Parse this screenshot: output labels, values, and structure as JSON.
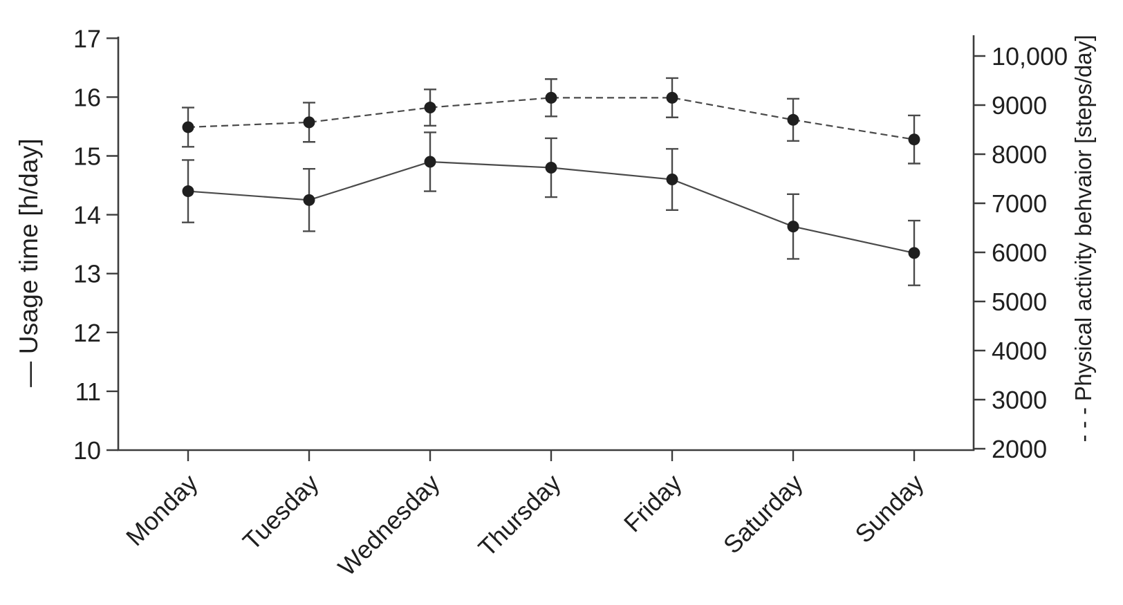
{
  "chart_data": {
    "type": "line",
    "title": "",
    "categories": [
      "Monday",
      "Tuesday",
      "Wednesday",
      "Thursday",
      "Friday",
      "Saturday",
      "Sunday"
    ],
    "series": [
      {
        "name": "Usage time",
        "axis": "left",
        "unit": "h/day",
        "line_style": "solid",
        "marker": "circle",
        "values": [
          14.4,
          14.25,
          14.9,
          14.8,
          14.6,
          13.8,
          13.35
        ],
        "errors": [
          0.53,
          0.53,
          0.5,
          0.5,
          0.52,
          0.55,
          0.55
        ]
      },
      {
        "name": "Physical activity",
        "axis": "right",
        "unit": "steps/day",
        "line_style": "dashed",
        "marker": "circle",
        "values": [
          8550,
          8650,
          8950,
          9150,
          9150,
          8700,
          8300
        ],
        "errors": [
          400,
          400,
          370,
          380,
          400,
          430,
          490
        ]
      }
    ],
    "left_axis": {
      "title": "— Usage time [h/day]",
      "range": [
        10,
        17
      ],
      "ticks": [
        10,
        11,
        12,
        13,
        14,
        15,
        16,
        17
      ]
    },
    "right_axis": {
      "title": "- - - Physical activity behvaior [steps/day]",
      "range": [
        2000,
        10000
      ],
      "ticks": [
        {
          "value": 2000,
          "label": "2000"
        },
        {
          "value": 3000,
          "label": "3000"
        },
        {
          "value": 4000,
          "label": "4000"
        },
        {
          "value": 5000,
          "label": "5000"
        },
        {
          "value": 6000,
          "label": "6000"
        },
        {
          "value": 7000,
          "label": "7000"
        },
        {
          "value": 8000,
          "label": "8000"
        },
        {
          "value": 9000,
          "label": "9000"
        },
        {
          "value": 10000,
          "label": "10,000"
        }
      ]
    },
    "x_axis": {
      "label_rotation_deg": -45
    },
    "grid": false,
    "legend_position": "encoded-in-axis-titles",
    "colors": {
      "marker": "#1f1f1f",
      "line": "#4a4a4a",
      "error_bar": "#4a4a4a",
      "axis": "#3c3c3c",
      "text": "#1f1f1f",
      "background": "#ffffff"
    }
  }
}
